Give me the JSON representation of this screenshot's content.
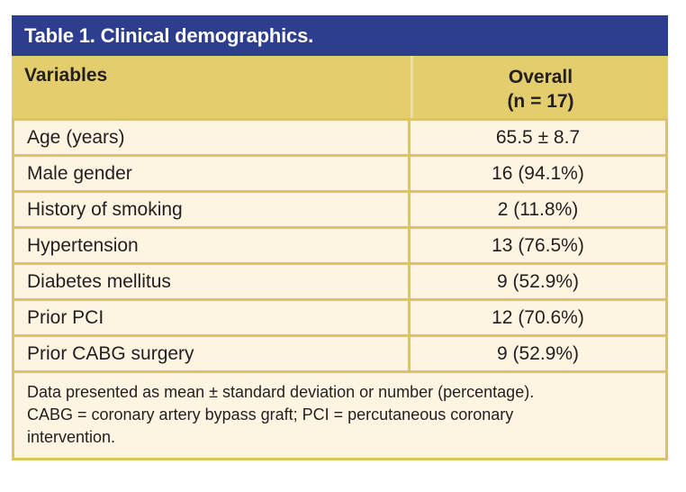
{
  "table": {
    "title": "Table 1. Clinical demographics.",
    "header": {
      "col1": "Variables",
      "col2_line1": "Overall",
      "col2_line2": "(n = 17)"
    },
    "rows": [
      {
        "label": "Age (years)",
        "value": "65.5 ± 8.7"
      },
      {
        "label": "Male gender",
        "value": "16 (94.1%)"
      },
      {
        "label": "History of smoking",
        "value": "2 (11.8%)"
      },
      {
        "label": "Hypertension",
        "value": "13 (76.5%)"
      },
      {
        "label": "Diabetes mellitus",
        "value": "9 (52.9%)"
      },
      {
        "label": "Prior PCI",
        "value": "12 (70.6%)"
      },
      {
        "label": "Prior CABG surgery",
        "value": "9 (52.9%)"
      }
    ],
    "footnote": {
      "lines": [
        "Data presented as mean ± standard deviation or number (percentage).",
        "CABG = coronary artery bypass graft; PCI = percutaneous coronary",
        "intervention."
      ]
    },
    "colors": {
      "title_bar": "#2d3e8e",
      "title_text": "#ffffff",
      "header_row": "#e3cd6c",
      "row_background": "#fdf4e1",
      "border": "#dcc45e",
      "text": "#231f20"
    }
  }
}
